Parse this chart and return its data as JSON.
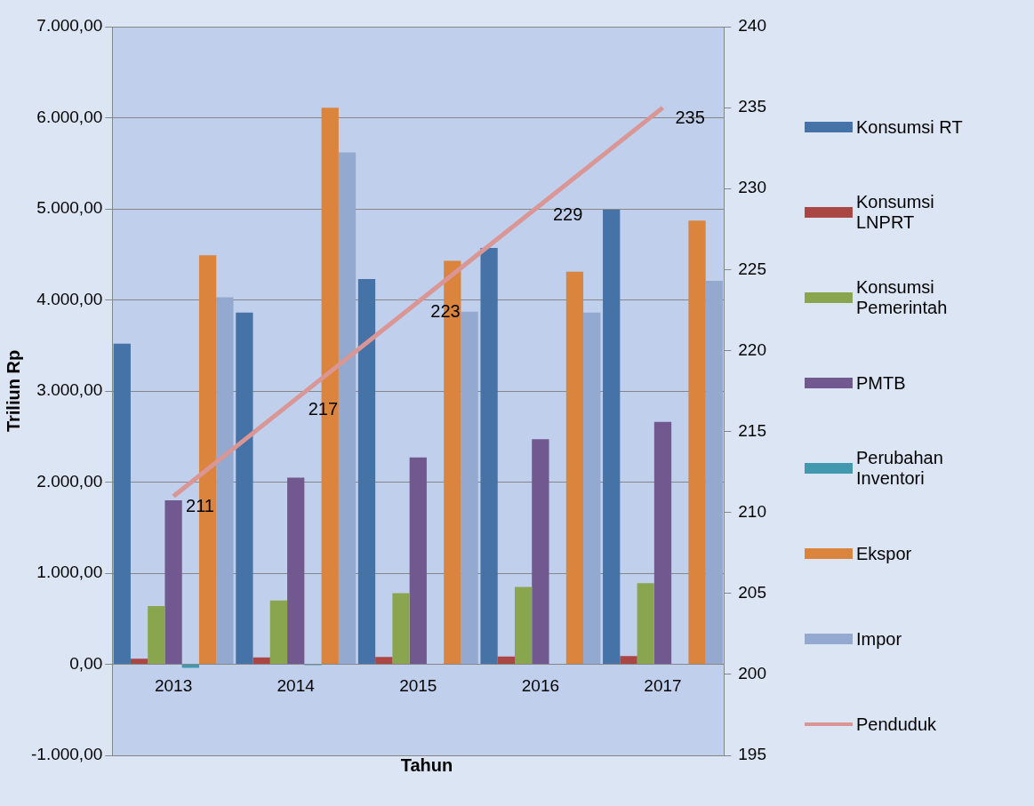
{
  "chart_data": {
    "type": "bar",
    "xlabel": "Tahun",
    "ylabel": "Triliun Rp",
    "categories": [
      "2013",
      "2014",
      "2015",
      "2016",
      "2017"
    ],
    "series": [
      {
        "name": "Konsumsi RT",
        "color": "#4572a7",
        "values": [
          3520,
          3860,
          4230,
          4570,
          4990
        ]
      },
      {
        "name": "Konsumsi LNPRT",
        "color": "#aa4643",
        "values": [
          60,
          75,
          80,
          85,
          90
        ]
      },
      {
        "name": "Konsumsi Pemerintah",
        "color": "#89a54e",
        "values": [
          640,
          700,
          780,
          850,
          890
        ]
      },
      {
        "name": "PMTB",
        "color": "#71588f",
        "values": [
          1800,
          2050,
          2270,
          2470,
          2660
        ]
      },
      {
        "name": "Perubahan Inventori",
        "color": "#4198af",
        "values": [
          -40,
          -10,
          0,
          0,
          0
        ]
      },
      {
        "name": "Ekspor",
        "color": "#db843d",
        "values": [
          4490,
          6110,
          4430,
          4310,
          4870
        ]
      },
      {
        "name": "Impor",
        "color": "#93a9cf",
        "values": [
          4030,
          5620,
          3870,
          3860,
          4210
        ]
      },
      {
        "name": "Penduduk",
        "type": "line",
        "axis": "y2",
        "color": "#d99694",
        "values": [
          211,
          217,
          223,
          229,
          235
        ],
        "value_labels": [
          "211",
          "217",
          "223",
          "229",
          "235"
        ]
      }
    ],
    "ylim": [
      -1000,
      7000
    ],
    "yticks": [
      {
        "value": -1000,
        "label": "-1.000,00"
      },
      {
        "value": 0,
        "label": "0,00"
      },
      {
        "value": 1000,
        "label": "1.000,00"
      },
      {
        "value": 2000,
        "label": "2.000,00"
      },
      {
        "value": 3000,
        "label": "3.000,00"
      },
      {
        "value": 4000,
        "label": "4.000,00"
      },
      {
        "value": 5000,
        "label": "5.000,00"
      },
      {
        "value": 6000,
        "label": "6.000,00"
      },
      {
        "value": 7000,
        "label": "7.000,00"
      }
    ],
    "y2lim": [
      195,
      240
    ],
    "y2ticks": [
      195,
      200,
      205,
      210,
      215,
      220,
      225,
      230,
      235,
      240
    ],
    "grid": "y",
    "legend": "right"
  }
}
